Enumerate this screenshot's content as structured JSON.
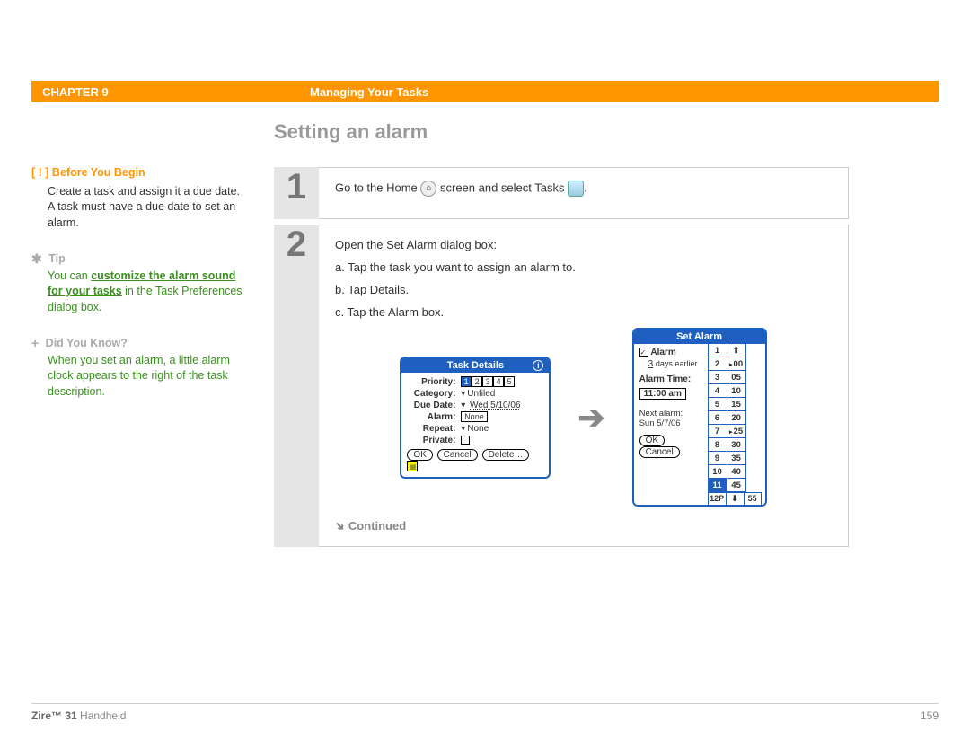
{
  "header": {
    "chapter": "CHAPTER 9",
    "title": "Managing Your Tasks"
  },
  "section_title": "Setting an alarm",
  "sidebar": {
    "before": {
      "head": "Before You Begin",
      "marker": "[ ! ]",
      "body": "Create a task and assign it a due date. A task must have a due date to set an alarm."
    },
    "tip": {
      "head": "Tip",
      "marker": "✱",
      "pre": "You can ",
      "link": "customize the alarm sound for your tasks",
      "post": " in the Task Preferences dialog box."
    },
    "dyk": {
      "head": "Did You Know?",
      "marker": "+",
      "body": "When you set an alarm, a little alarm clock appears to the right of the task description."
    }
  },
  "steps": {
    "s1": {
      "num": "1",
      "pre": "Go to the Home ",
      "mid": " screen and select Tasks ",
      "post": "."
    },
    "s2": {
      "num": "2",
      "intro": "Open the Set Alarm dialog box:",
      "a": "a.  Tap the task you want to assign an alarm to.",
      "b": "b.  Tap Details.",
      "c": "c.  Tap the Alarm box.",
      "continued": "Continued"
    }
  },
  "task_details": {
    "title": "Task Details",
    "priority_label": "Priority:",
    "p1": "1",
    "p2": "2",
    "p3": "3",
    "p4": "4",
    "p5": "5",
    "category_label": "Category:",
    "category_val": "Unfiled",
    "duedate_label": "Due Date:",
    "duedate_val": "Wed 5/10/06",
    "alarm_label": "Alarm:",
    "alarm_val": "None",
    "repeat_label": "Repeat:",
    "repeat_val": "None",
    "private_label": "Private:",
    "ok": "OK",
    "cancel": "Cancel",
    "delete": "Delete…"
  },
  "set_alarm": {
    "title": "Set Alarm",
    "alarm_chk": "Alarm",
    "days_val": "3",
    "days_suf": "days earlier",
    "alarmtime_label": "Alarm Time:",
    "alarmtime_val": "11:00 am",
    "next_label": "Next alarm:",
    "next_val": "Sun 5/7/06",
    "ok": "OK",
    "cancel": "Cancel",
    "hours": [
      "1",
      "2",
      "3",
      "4",
      "5",
      "6",
      "7",
      "8",
      "9",
      "10",
      "11"
    ],
    "mins": [
      "00",
      "05",
      "10",
      "15",
      "20",
      "25",
      "30",
      "35",
      "40",
      "45"
    ],
    "sel_hour_idx": 10,
    "sel_min_idx2": 5,
    "ampm": "12P",
    "min55": "55",
    "arrow_up": "⬆",
    "arrow_dn": "⬇"
  },
  "footer": {
    "product_b": "Zire™ 31",
    "product_r": " Handheld",
    "page": "159"
  }
}
